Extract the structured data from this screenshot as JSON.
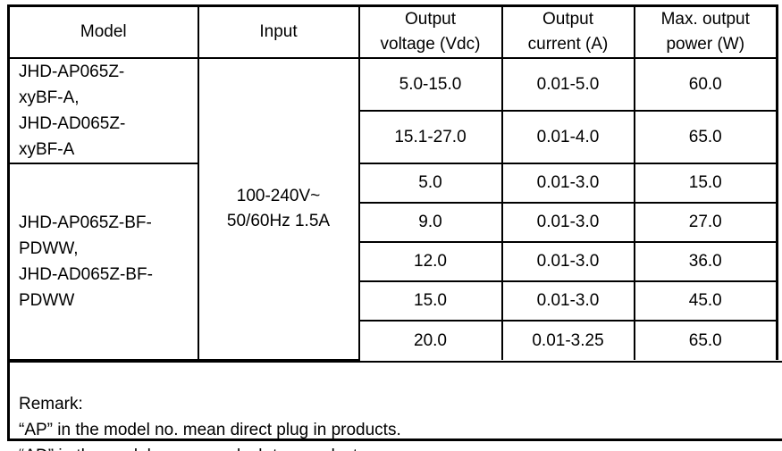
{
  "colors": {
    "border": "#000000",
    "text": "#000000",
    "background": "#ffffff"
  },
  "table": {
    "headers": {
      "model": [
        "Model"
      ],
      "input": [
        "Input"
      ],
      "output_voltage": [
        "Output",
        "voltage (Vdc)"
      ],
      "output_current": [
        "Output",
        "current (A)"
      ],
      "max_output_power": [
        "Max. output",
        "power (W)"
      ]
    },
    "model_groups": [
      {
        "lines": [
          "JHD-AP065Z-",
          "xyBF-A,",
          "JHD-AD065Z-",
          "xyBF-A"
        ]
      },
      {
        "lines": [
          "JHD-AP065Z-BF-",
          "PDWW,",
          "JHD-AD065Z-BF-",
          "PDWW"
        ]
      }
    ],
    "input_value": [
      "100-240V~",
      "50/60Hz 1.5A"
    ],
    "rows": [
      {
        "output_voltage": "5.0-15.0",
        "output_current": "0.01-5.0",
        "max_output_power": "60.0"
      },
      {
        "output_voltage": "15.1-27.0",
        "output_current": "0.01-4.0",
        "max_output_power": "65.0"
      },
      {
        "output_voltage": "5.0",
        "output_current": "0.01-3.0",
        "max_output_power": "15.0"
      },
      {
        "output_voltage": "9.0",
        "output_current": "0.01-3.0",
        "max_output_power": "27.0"
      },
      {
        "output_voltage": "12.0",
        "output_current": "0.01-3.0",
        "max_output_power": "36.0"
      },
      {
        "output_voltage": "15.0",
        "output_current": "0.01-3.0",
        "max_output_power": "45.0"
      },
      {
        "output_voltage": "20.0",
        "output_current": "0.01-3.25",
        "max_output_power": "65.0"
      }
    ],
    "remark": {
      "lines": [
        "Remark:",
        "“AP” in the model no. mean direct plug in products.",
        "“AD” in the model no. mean desk-top products."
      ]
    }
  }
}
